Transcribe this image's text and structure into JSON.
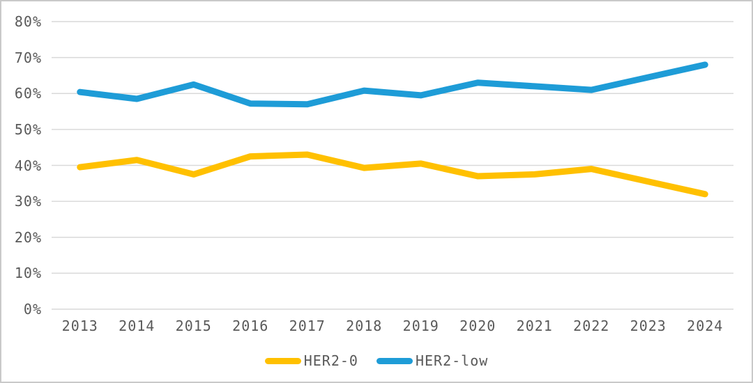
{
  "chart_data": {
    "type": "line",
    "title": "",
    "xlabel": "",
    "ylabel": "",
    "categories": [
      "2013",
      "2014",
      "2015",
      "2016",
      "2017",
      "2018",
      "2019",
      "2020",
      "2021",
      "2022",
      "2023",
      "2024"
    ],
    "series": [
      {
        "name": "HER2-0",
        "color": "#FFC000",
        "values": [
          39.5,
          41.5,
          37.5,
          42.5,
          43.0,
          39.3,
          40.5,
          37.0,
          37.5,
          39.0,
          35.5,
          32.0
        ]
      },
      {
        "name": "HER2-low",
        "color": "#1E9CD7",
        "values": [
          60.4,
          58.5,
          62.5,
          57.2,
          57.0,
          60.8,
          59.5,
          63.0,
          62.0,
          61.0,
          64.5,
          68.0
        ]
      }
    ],
    "ylim": [
      0,
      80
    ],
    "y_ticks": [
      "0%",
      "10%",
      "20%",
      "30%",
      "40%",
      "50%",
      "60%",
      "70%",
      "80%"
    ],
    "grid": true,
    "legend_position": "bottom"
  },
  "colors": {
    "gridline": "#d9d9d9",
    "tick_text": "#595959",
    "background": "#ffffff",
    "frame_border": "#c9c9c9"
  }
}
